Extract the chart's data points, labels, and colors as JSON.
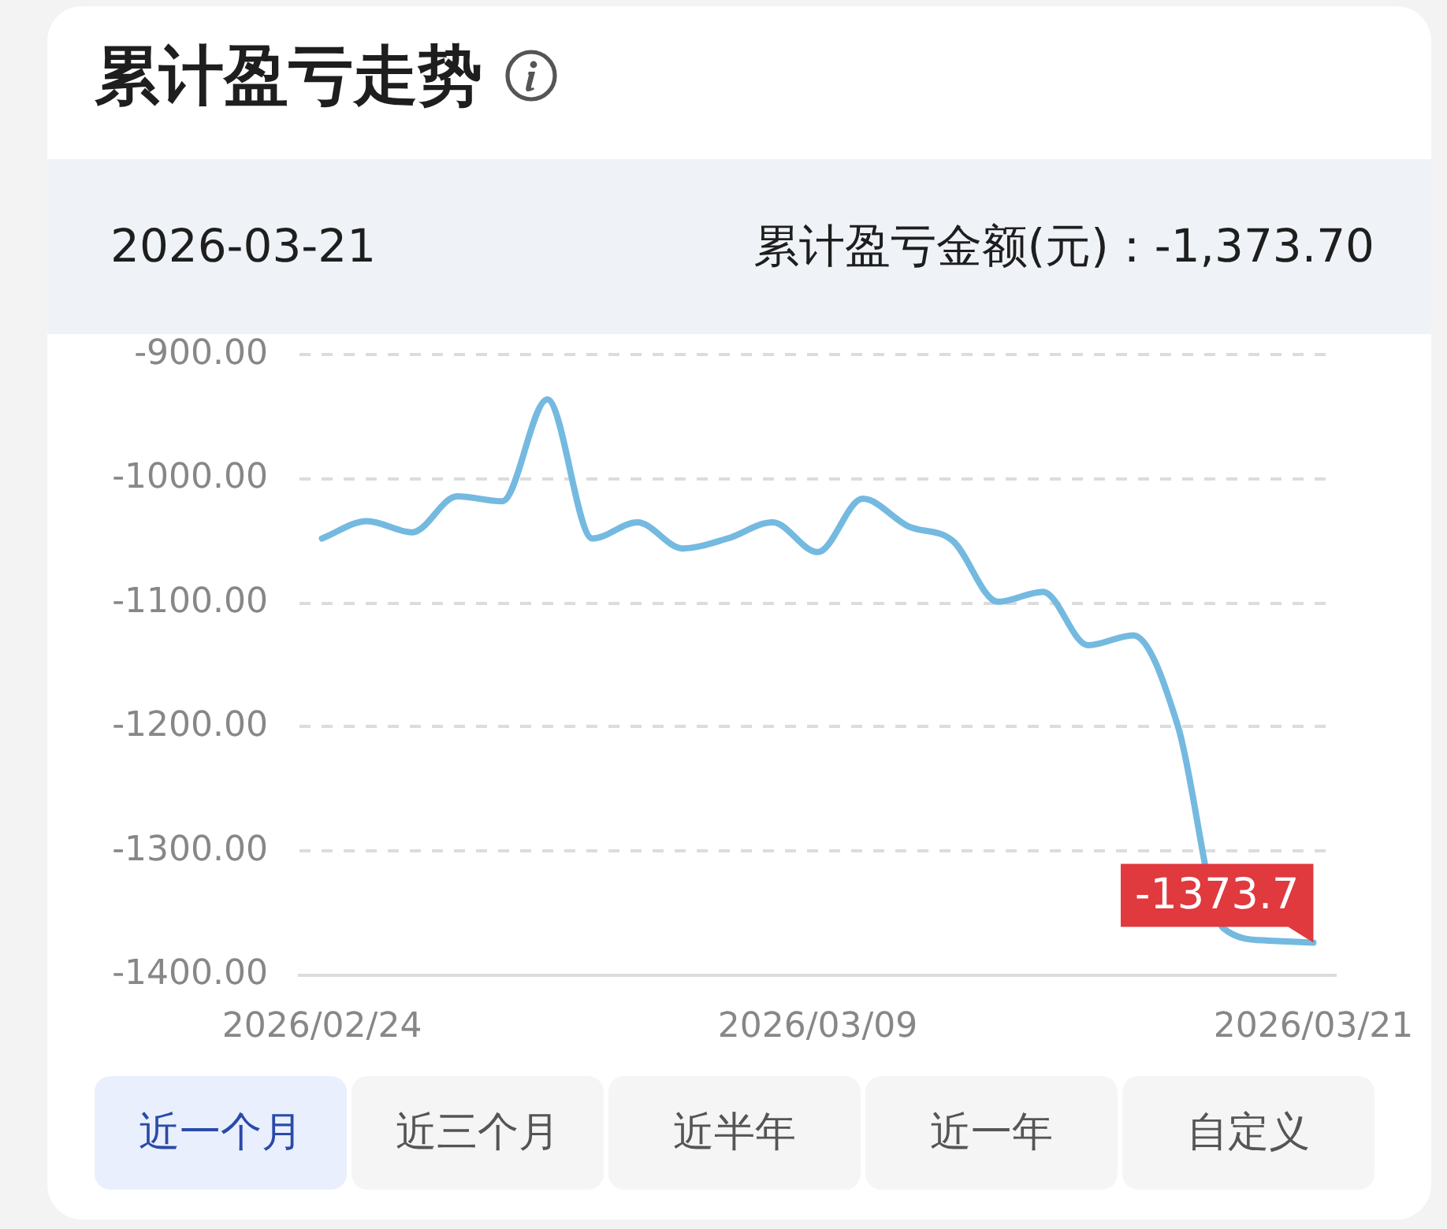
{
  "chart_data": {
    "type": "line",
    "title": "累计盈亏走势",
    "categories": [
      "2026/02/24",
      null,
      null,
      null,
      null,
      null,
      null,
      null,
      null,
      null,
      null,
      "2026/03/09",
      null,
      null,
      null,
      null,
      null,
      null,
      null,
      null,
      null,
      null,
      "2026/03/21"
    ],
    "series": [
      {
        "color": "#74b9e0",
        "values": [
          -1048,
          -1034,
          -1043,
          -1014,
          -1018,
          -936,
          -1048,
          -1035,
          -1056,
          -1048,
          -1035,
          -1059,
          -1016,
          -1038,
          -1050,
          -1099,
          -1091,
          -1134,
          -1126,
          -1200,
          -1362,
          -1372,
          -1373.7
        ],
        "value_labels": [
          null,
          null,
          null,
          null,
          null,
          null,
          null,
          null,
          null,
          null,
          null,
          null,
          null,
          null,
          null,
          null,
          null,
          null,
          null,
          null,
          null,
          null,
          "-1373.7"
        ]
      }
    ],
    "ylim": [
      -1400,
      -900
    ],
    "yticks": [
      {
        "value": -900,
        "label": "-900.00"
      },
      {
        "value": -1000,
        "label": "-1000.00"
      },
      {
        "value": -1100,
        "label": "-1100.00"
      },
      {
        "value": -1200,
        "label": "-1200.00"
      },
      {
        "value": -1300,
        "label": "-1300.00"
      },
      {
        "value": -1400,
        "label": "-1400.00"
      }
    ],
    "grid": "y",
    "marker": "none",
    "line_style": "solid",
    "annotations": [
      "2026-03-21",
      "累计盈亏金额(元)：-1,373.70",
      "近一个月",
      "近三个月",
      "近半年",
      "近一年",
      "自定义"
    ]
  }
}
